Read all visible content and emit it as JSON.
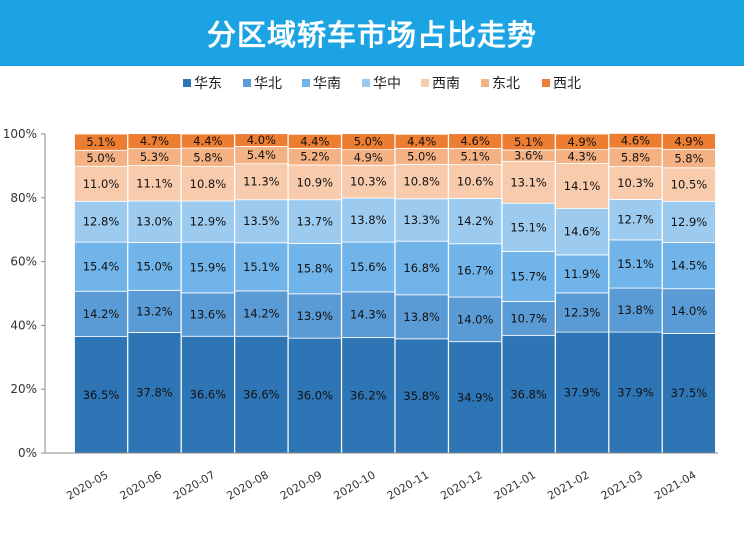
{
  "chart_data": {
    "type": "bar",
    "stacked": true,
    "title": "分区域轿车市场占比走势",
    "categories": [
      "2020-05",
      "2020-06",
      "2020-07",
      "2020-08",
      "2020-09",
      "2020-10",
      "2020-11",
      "2020-12",
      "2021-01",
      "2021-02",
      "2021-03",
      "2021-04"
    ],
    "ylim": [
      0,
      100
    ],
    "yticks": [
      "0%",
      "20%",
      "40%",
      "60%",
      "80%",
      "100%"
    ],
    "legend_position": "top",
    "series": [
      {
        "name": "华东",
        "color": "#2e75b6",
        "values": [
          36.5,
          37.8,
          36.6,
          36.6,
          36.0,
          36.2,
          35.8,
          34.9,
          36.8,
          37.9,
          37.9,
          37.5
        ]
      },
      {
        "name": "华北",
        "color": "#5b9bd5",
        "values": [
          14.2,
          13.2,
          13.6,
          14.2,
          13.9,
          14.3,
          13.8,
          14.0,
          10.7,
          12.3,
          13.8,
          14.0
        ]
      },
      {
        "name": "华南",
        "color": "#70b4ea",
        "values": [
          15.4,
          15.0,
          15.9,
          15.1,
          15.8,
          15.6,
          16.8,
          16.7,
          15.7,
          11.9,
          15.1,
          14.5
        ]
      },
      {
        "name": "华中",
        "color": "#9dcbf0",
        "values": [
          12.8,
          13.0,
          12.9,
          13.5,
          13.7,
          13.8,
          13.3,
          14.2,
          15.1,
          14.6,
          12.7,
          12.9
        ]
      },
      {
        "name": "西南",
        "color": "#f8cbad",
        "values": [
          11.0,
          11.1,
          10.8,
          11.3,
          10.9,
          10.3,
          10.8,
          10.6,
          13.1,
          14.1,
          10.3,
          10.5
        ]
      },
      {
        "name": "东北",
        "color": "#f4b183",
        "values": [
          5.0,
          5.3,
          5.8,
          5.4,
          5.2,
          4.9,
          5.0,
          5.1,
          3.6,
          4.3,
          5.8,
          5.8
        ]
      },
      {
        "name": "西北",
        "color": "#ed7d31",
        "values": [
          5.1,
          4.7,
          4.4,
          4.0,
          4.4,
          5.0,
          4.4,
          4.6,
          5.1,
          4.9,
          4.6,
          4.9
        ]
      }
    ]
  }
}
